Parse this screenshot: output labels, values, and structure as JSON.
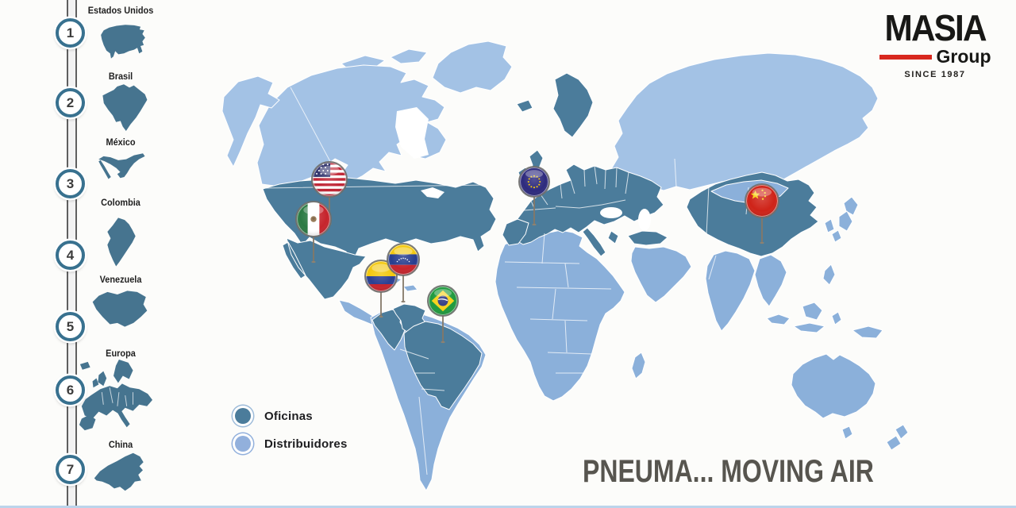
{
  "logo": {
    "brand": "MASIA",
    "group": "Group",
    "since": "SINCE 1987",
    "accent_color": "#d8281e"
  },
  "headline": {
    "text": "PNEUMA... MOVING AIR",
    "color": "#57554f"
  },
  "legend": {
    "items": [
      {
        "id": "oficinas",
        "label": "Oficinas",
        "type": "office",
        "marker_icon": "office-marker-icon"
      },
      {
        "id": "distribuidores",
        "label": "Distribuidores",
        "type": "distributor",
        "marker_icon": "distributor-marker-icon"
      }
    ]
  },
  "sidebar": {
    "items": [
      {
        "number": "1",
        "label": "Estados Unidos",
        "icon": "silhouette-usa-icon"
      },
      {
        "number": "2",
        "label": "Brasil",
        "icon": "silhouette-brazil-icon"
      },
      {
        "number": "3",
        "label": "México",
        "icon": "silhouette-mexico-icon"
      },
      {
        "number": "4",
        "label": "Colombia",
        "icon": "silhouette-colombia-icon"
      },
      {
        "number": "5",
        "label": "Venezuela",
        "icon": "silhouette-venezuela-icon"
      },
      {
        "number": "6",
        "label": "Europa",
        "icon": "silhouette-europe-icon"
      },
      {
        "number": "7",
        "label": "China",
        "icon": "silhouette-china-icon"
      }
    ]
  },
  "map": {
    "pins": [
      {
        "id": "estados-unidos",
        "flag": "flag-usa-icon"
      },
      {
        "id": "mexico",
        "flag": "flag-mexico-icon"
      },
      {
        "id": "colombia",
        "flag": "flag-colombia-icon"
      },
      {
        "id": "venezuela",
        "flag": "flag-venezuela-icon"
      },
      {
        "id": "brasil",
        "flag": "flag-brazil-icon"
      },
      {
        "id": "europa",
        "flag": "flag-eu-icon"
      },
      {
        "id": "china",
        "flag": "flag-china-icon"
      }
    ],
    "colors": {
      "office": "#4b7c9b",
      "distributor": "#8bb0da",
      "distributor_light": "#a3c2e5",
      "silhouette": "#46748f",
      "ring_teal": "#38718f"
    }
  }
}
